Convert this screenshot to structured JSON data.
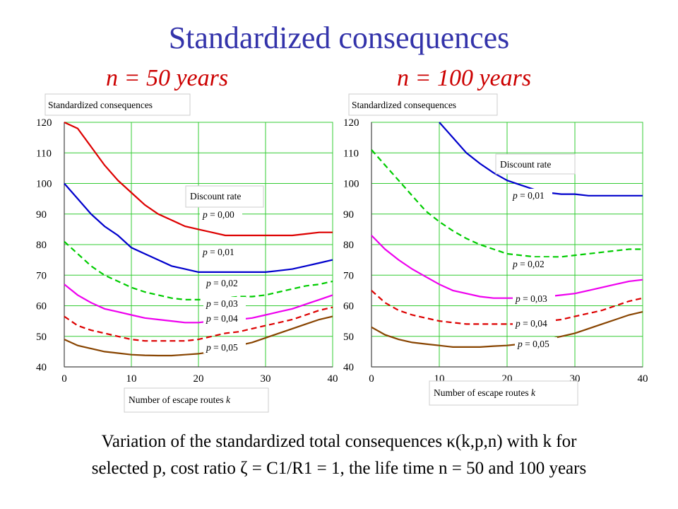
{
  "page": {
    "title": "Standardized consequences",
    "caption_line1": "Variation of the standardized total consequences  κ(k,p,n) with k for",
    "caption_line2": "selected p, cost ratio ζ = C1/R1 = 1, the life time n = 50 and 100 years"
  },
  "colors": {
    "title": "#3333aa",
    "subtitle": "#cc0000",
    "grid": "#33cc33",
    "p000": "#dd0000",
    "p001": "#0000cc",
    "p002": "#00cc00",
    "p003": "#ee00ee",
    "p004": "#dd0000",
    "p005": "#884400"
  },
  "chart_data": [
    {
      "type": "line",
      "subtitle": "n = 50 years",
      "title": "Standardized consequences",
      "xlabel": "Number of escape routes k",
      "legend_title": "Discount rate",
      "xlim": [
        0,
        40
      ],
      "ylim": [
        40,
        120
      ],
      "x_ticks": [
        "0",
        "10",
        "20",
        "30",
        "40"
      ],
      "y_ticks": [
        "40",
        "50",
        "60",
        "70",
        "80",
        "90",
        "100",
        "110",
        "120"
      ],
      "grid": true,
      "x": [
        0,
        2,
        4,
        6,
        8,
        10,
        12,
        14,
        16,
        18,
        20,
        22,
        24,
        26,
        28,
        30,
        32,
        34,
        36,
        38,
        40
      ],
      "series": [
        {
          "name": "p = 0,00",
          "style": "solid",
          "color_key": "p000",
          "values": [
            124,
            118,
            112,
            106,
            101,
            97,
            93,
            90,
            88,
            86,
            85,
            84,
            83,
            83,
            83,
            83,
            83,
            83,
            83.5,
            84,
            84
          ]
        },
        {
          "name": "p = 0,01",
          "style": "solid",
          "color_key": "p001",
          "values": [
            100,
            95,
            90,
            86,
            83,
            79,
            77,
            75,
            73,
            72,
            71,
            71,
            71,
            71,
            71,
            71,
            71.5,
            72,
            73,
            74,
            75
          ]
        },
        {
          "name": "p = 0,02",
          "style": "dashed",
          "color_key": "p002",
          "values": [
            81,
            77,
            73,
            70,
            68,
            66,
            64.5,
            63.5,
            62.5,
            62,
            62,
            62,
            62.5,
            63,
            63,
            63.5,
            64.5,
            65.5,
            66.5,
            67,
            68
          ]
        },
        {
          "name": "p = 0,03",
          "style": "solid",
          "color_key": "p003",
          "values": [
            67,
            63.5,
            61,
            59,
            58,
            57,
            56,
            55.5,
            55,
            54.5,
            54.5,
            55,
            55,
            55.5,
            56,
            57,
            58,
            59,
            60.5,
            62,
            63.5
          ]
        },
        {
          "name": "p = 0,04",
          "style": "dashed",
          "color_key": "p004",
          "values": [
            56.5,
            53.5,
            52,
            51,
            50,
            49,
            48.5,
            48.5,
            48.5,
            48.5,
            49,
            50,
            51,
            51.5,
            52.5,
            53.5,
            54.5,
            55.5,
            57,
            58.5,
            59.5
          ]
        },
        {
          "name": "p = 0,05",
          "style": "solid",
          "color_key": "p005",
          "values": [
            49,
            47,
            46,
            45,
            44.5,
            44,
            43.8,
            43.7,
            43.7,
            44,
            44.3,
            45,
            46,
            47,
            48,
            49.5,
            51,
            52.5,
            54,
            55.5,
            56.5
          ]
        }
      ]
    },
    {
      "type": "line",
      "subtitle": "n = 100 years",
      "title": "Standardized consequences",
      "xlabel": "Number of escape routes k",
      "legend_title": "Discount rate",
      "xlim": [
        0,
        40
      ],
      "ylim": [
        40,
        120
      ],
      "x_ticks": [
        "0",
        "10",
        "20",
        "30",
        "40"
      ],
      "y_ticks": [
        "40",
        "50",
        "60",
        "70",
        "80",
        "90",
        "100",
        "110",
        "120"
      ],
      "grid": true,
      "x": [
        0,
        2,
        4,
        6,
        8,
        10,
        12,
        14,
        16,
        18,
        20,
        22,
        24,
        26,
        28,
        30,
        32,
        34,
        36,
        38,
        40
      ],
      "series": [
        {
          "name": "p = 0,01",
          "style": "solid",
          "color_key": "p001",
          "values": [
            null,
            null,
            null,
            null,
            null,
            120,
            115,
            110,
            106.5,
            103.5,
            101,
            99.5,
            98,
            97,
            96.5,
            96.5,
            96,
            96,
            96,
            96,
            96
          ]
        },
        {
          "name": "p = 0,02",
          "style": "dashed",
          "color_key": "p002",
          "values": [
            111,
            106,
            101,
            96,
            91,
            87.5,
            84.5,
            82,
            80,
            78.5,
            77,
            76.5,
            76,
            76,
            76,
            76.5,
            77,
            77.5,
            78,
            78.5,
            78.5
          ]
        },
        {
          "name": "p = 0,03",
          "style": "solid",
          "color_key": "p003",
          "values": [
            83,
            78.5,
            75,
            72,
            69.5,
            67,
            65,
            64,
            63,
            62.5,
            62.5,
            62.5,
            62.5,
            63,
            63.5,
            64,
            65,
            66,
            67,
            68,
            68.5
          ]
        },
        {
          "name": "p = 0,04",
          "style": "dashed",
          "color_key": "p004",
          "values": [
            65,
            61,
            58.5,
            57,
            56,
            55,
            54.5,
            54,
            54,
            54,
            54,
            54,
            54.5,
            55,
            55.5,
            56.5,
            57.5,
            58.5,
            60,
            61.5,
            62.5
          ]
        },
        {
          "name": "p = 0,05",
          "style": "solid",
          "color_key": "p005",
          "values": [
            53,
            50.5,
            49,
            48,
            47.5,
            47,
            46.5,
            46.5,
            46.5,
            46.8,
            47,
            47.5,
            48,
            49,
            50,
            51,
            52.5,
            54,
            55.5,
            57,
            58
          ]
        }
      ]
    }
  ]
}
